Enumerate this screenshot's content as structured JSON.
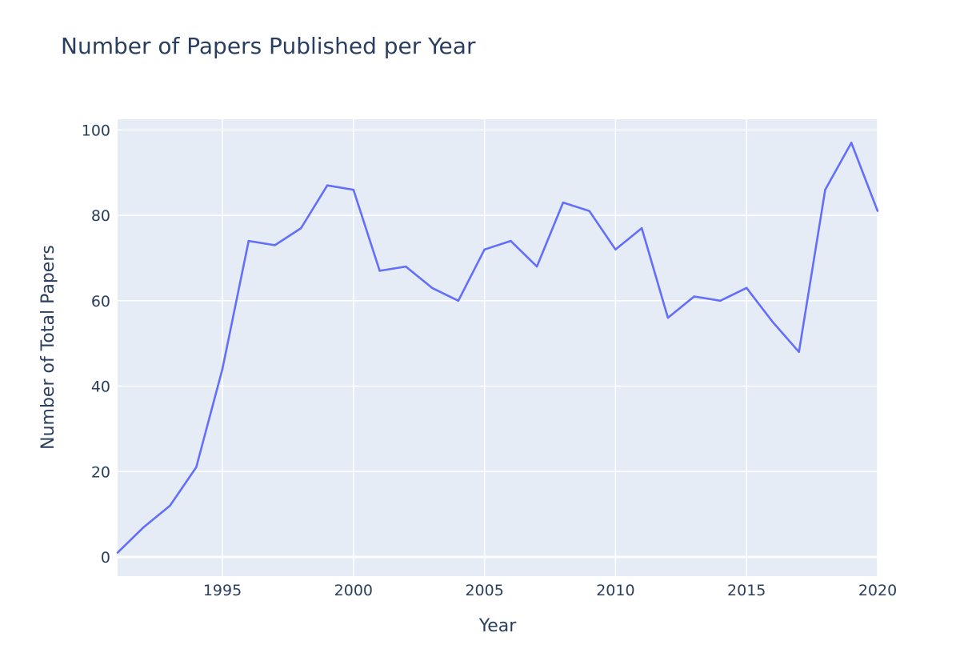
{
  "chart_data": {
    "type": "line",
    "title": "Number of Papers Published per Year",
    "xlabel": "Year",
    "ylabel": "Number of Total Papers",
    "xlim": [
      1991,
      2020
    ],
    "ylim": [
      -4.5,
      102.5
    ],
    "xticks": [
      1995,
      2000,
      2005,
      2010,
      2015,
      2020
    ],
    "yticks": [
      0,
      20,
      40,
      60,
      80,
      100
    ],
    "grid": true,
    "colors": {
      "line": "#636efa",
      "plot_bg": "#e5ecf6",
      "grid": "#ffffff",
      "text": "#2a3f5f"
    },
    "series": [
      {
        "x": [
          1991,
          1992,
          1993,
          1994,
          1995,
          1996,
          1997,
          1998,
          1999,
          2000,
          2001,
          2002,
          2003,
          2004,
          2005,
          2006,
          2007,
          2008,
          2009,
          2010,
          2011,
          2012,
          2013,
          2014,
          2015,
          2016,
          2017,
          2018,
          2019,
          2020
        ],
        "values": [
          1,
          7,
          12,
          21,
          44,
          74,
          73,
          77,
          87,
          86,
          67,
          68,
          63,
          60,
          72,
          74,
          68,
          83,
          81,
          72,
          77,
          56,
          61,
          60,
          63,
          55,
          48,
          86,
          97,
          81
        ]
      }
    ]
  }
}
